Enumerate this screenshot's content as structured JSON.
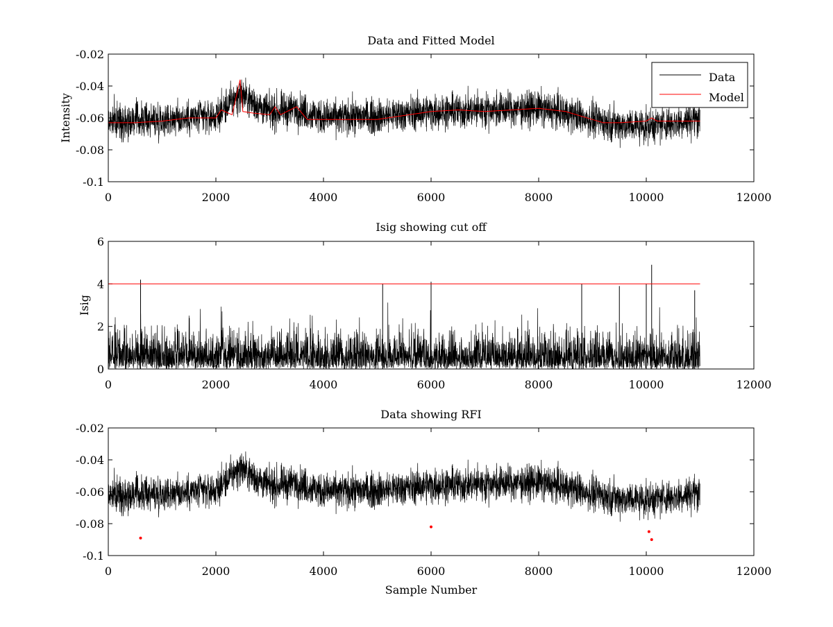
{
  "chart_data": [
    {
      "type": "line",
      "title": "Data and Fitted Model",
      "xlabel": "",
      "ylabel": "Intensity",
      "xlim": [
        0,
        12000
      ],
      "ylim": [
        -0.1,
        -0.02
      ],
      "y_reversed": true,
      "xticks": [
        "0",
        "2000",
        "4000",
        "6000",
        "8000",
        "10000",
        "12000"
      ],
      "yticks": [
        "-0.1",
        "-0.08",
        "-0.06",
        "-0.04",
        "-0.02"
      ],
      "legend": {
        "position": "top-right",
        "entries": [
          {
            "name": "Data",
            "color": "#000000"
          },
          {
            "name": "Model",
            "color": "#ff0000"
          }
        ]
      },
      "series": [
        {
          "name": "Data",
          "color": "#000000",
          "n_samples": 11000,
          "trend_x": [
            0,
            1000,
            2000,
            2450,
            3000,
            3500,
            4000,
            5000,
            6000,
            7000,
            8000,
            8500,
            9000,
            9500,
            10000,
            10500,
            11000
          ],
          "trend_y": [
            -0.062,
            -0.061,
            -0.059,
            -0.045,
            -0.057,
            -0.054,
            -0.06,
            -0.059,
            -0.056,
            -0.055,
            -0.054,
            -0.057,
            -0.061,
            -0.064,
            -0.065,
            -0.063,
            -0.06
          ],
          "spread": 0.012
        },
        {
          "name": "Model",
          "color": "#ff0000",
          "x": [
            0,
            500,
            1000,
            1500,
            2000,
            2100,
            2300,
            2450,
            2500,
            2700,
            3000,
            3100,
            3200,
            3500,
            3700,
            4000,
            5000,
            6000,
            6500,
            7000,
            7500,
            8000,
            8500,
            9000,
            9200,
            9500,
            10000,
            10100,
            10200,
            11000
          ],
          "y": [
            -0.063,
            -0.063,
            -0.062,
            -0.06,
            -0.06,
            -0.055,
            -0.058,
            -0.036,
            -0.056,
            -0.057,
            -0.058,
            -0.053,
            -0.058,
            -0.053,
            -0.061,
            -0.061,
            -0.061,
            -0.056,
            -0.055,
            -0.056,
            -0.055,
            -0.054,
            -0.056,
            -0.061,
            -0.063,
            -0.063,
            -0.062,
            -0.06,
            -0.062,
            -0.062
          ]
        }
      ]
    },
    {
      "type": "line",
      "title": "Isig showing cut off",
      "xlabel": "",
      "ylabel": "Isig",
      "xlim": [
        0,
        12000
      ],
      "ylim": [
        0,
        6
      ],
      "xticks": [
        "0",
        "2000",
        "4000",
        "6000",
        "8000",
        "10000",
        "12000"
      ],
      "yticks": [
        "0",
        "2",
        "4",
        "6"
      ],
      "series": [
        {
          "name": "Isig",
          "color": "#000000",
          "n_samples": 11000,
          "peaks_x": [
            600,
            5100,
            6000,
            8800,
            9500,
            10000,
            10100,
            10900
          ],
          "peaks_y": [
            4.2,
            4.0,
            4.1,
            4.0,
            3.9,
            4.0,
            4.9,
            3.7
          ]
        },
        {
          "name": "cut off",
          "color": "#ff0000",
          "x": [
            0,
            11000
          ],
          "y": [
            4,
            4
          ]
        }
      ]
    },
    {
      "type": "line",
      "title": "Data showing RFI",
      "xlabel": "Sample Number",
      "ylabel": "",
      "xlim": [
        0,
        12000
      ],
      "ylim": [
        -0.1,
        -0.02
      ],
      "y_reversed": true,
      "xticks": [
        "0",
        "2000",
        "4000",
        "6000",
        "8000",
        "10000",
        "12000"
      ],
      "yticks": [
        "-0.1",
        "-0.08",
        "-0.06",
        "-0.04",
        "-0.02"
      ],
      "series": [
        {
          "name": "Data",
          "color": "#000000",
          "n_samples": 11000,
          "trend_x": [
            0,
            1000,
            2000,
            2450,
            3000,
            3500,
            4000,
            5000,
            6000,
            7000,
            8000,
            8500,
            9000,
            9500,
            10000,
            10500,
            11000
          ],
          "trend_y": [
            -0.062,
            -0.061,
            -0.059,
            -0.045,
            -0.057,
            -0.054,
            -0.06,
            -0.059,
            -0.056,
            -0.055,
            -0.054,
            -0.057,
            -0.061,
            -0.064,
            -0.065,
            -0.063,
            -0.06
          ],
          "spread": 0.012
        },
        {
          "name": "RFI",
          "color": "#ff0000",
          "marker": "point",
          "x": [
            600,
            6000,
            10050,
            10100
          ],
          "y": [
            -0.089,
            -0.082,
            -0.085,
            -0.09
          ]
        }
      ]
    }
  ]
}
